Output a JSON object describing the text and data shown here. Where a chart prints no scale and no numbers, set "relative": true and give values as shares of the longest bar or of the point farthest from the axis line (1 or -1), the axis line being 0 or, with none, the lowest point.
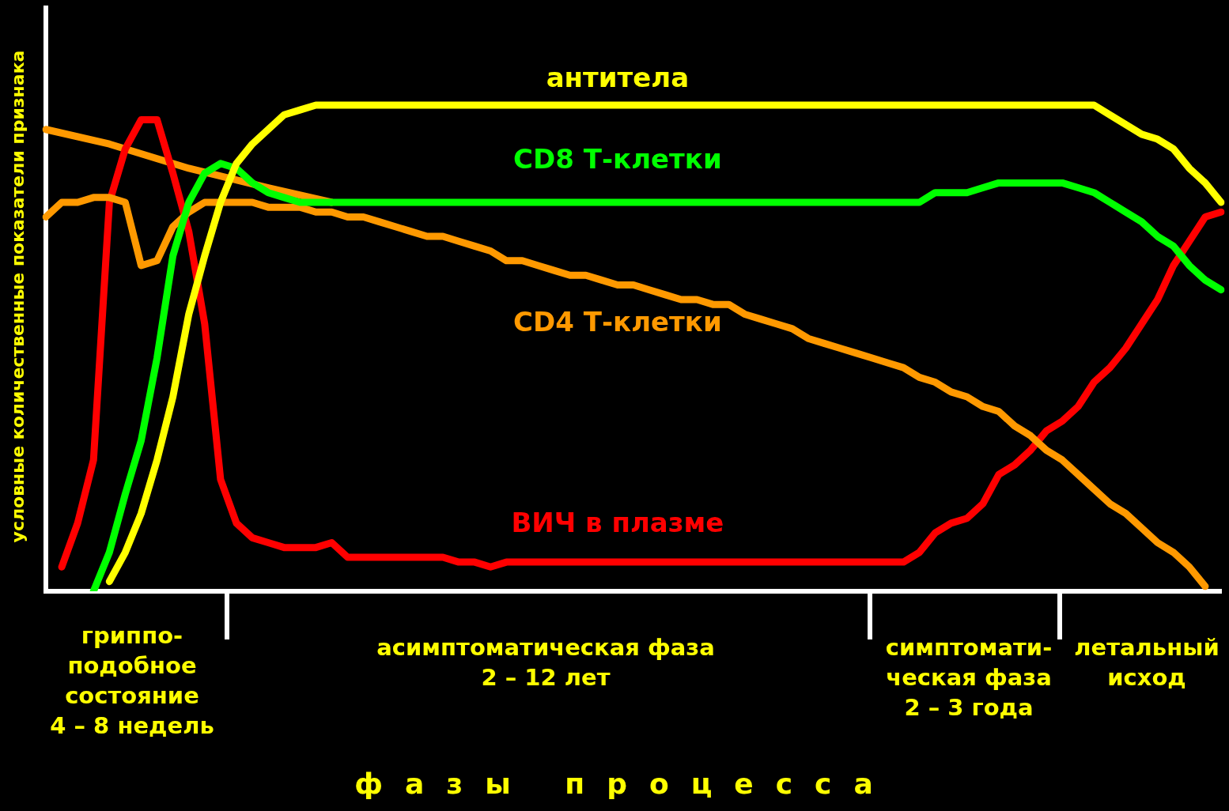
{
  "chart_data": {
    "type": "line",
    "relative": true,
    "ylabel": "условные количественные показатели признака",
    "marker": "none",
    "line_style": "solid",
    "categories": [
      null,
      null,
      null,
      null,
      null,
      null,
      null,
      null,
      null,
      null,
      null,
      null,
      null,
      null,
      null,
      null,
      null,
      null,
      null,
      null,
      null,
      null,
      null,
      null,
      null,
      null,
      null,
      null,
      null,
      null,
      null,
      null,
      null,
      null,
      null,
      null,
      null,
      null,
      null,
      null,
      null,
      null,
      null,
      null,
      null,
      null,
      null,
      null,
      null,
      null,
      null,
      null,
      null,
      null,
      null,
      null,
      null,
      null,
      null,
      null,
      null,
      null,
      null,
      null,
      null,
      null,
      null,
      null,
      null,
      null,
      null,
      null,
      null,
      null,
      null
    ],
    "series": [
      {
        "name": "антитела",
        "color": "#ffff00",
        "values": [
          null,
          null,
          null,
          null,
          0.02,
          0.08,
          0.16,
          0.27,
          0.4,
          0.57,
          0.69,
          0.8,
          0.88,
          0.92,
          0.95,
          0.98,
          0.99,
          1.0,
          1.0,
          1.0,
          1.0,
          1.0,
          1.0,
          1.0,
          1.0,
          1.0,
          1.0,
          1.0,
          1.0,
          1.0,
          1.0,
          1.0,
          1.0,
          1.0,
          1.0,
          1.0,
          1.0,
          1.0,
          1.0,
          1.0,
          1.0,
          1.0,
          1.0,
          1.0,
          1.0,
          1.0,
          1.0,
          1.0,
          1.0,
          1.0,
          1.0,
          1.0,
          1.0,
          1.0,
          1.0,
          1.0,
          1.0,
          1.0,
          1.0,
          1.0,
          1.0,
          1.0,
          1.0,
          1.0,
          1.0,
          1.0,
          1.0,
          0.98,
          0.96,
          0.94,
          0.93,
          0.91,
          0.87,
          0.84,
          0.8
        ]
      },
      {
        "name": "CD8 Т-клетки",
        "color": "#00ff00",
        "values": [
          null,
          null,
          null,
          0.0,
          0.08,
          0.2,
          0.31,
          0.48,
          0.69,
          0.8,
          0.86,
          0.88,
          0.87,
          0.84,
          0.82,
          0.81,
          0.8,
          0.8,
          0.8,
          0.8,
          0.8,
          0.8,
          0.8,
          0.8,
          0.8,
          0.8,
          0.8,
          0.8,
          0.8,
          0.8,
          0.8,
          0.8,
          0.8,
          0.8,
          0.8,
          0.8,
          0.8,
          0.8,
          0.8,
          0.8,
          0.8,
          0.8,
          0.8,
          0.8,
          0.8,
          0.8,
          0.8,
          0.8,
          0.8,
          0.8,
          0.8,
          0.8,
          0.8,
          0.8,
          0.8,
          0.8,
          0.82,
          0.82,
          0.82,
          0.83,
          0.84,
          0.84,
          0.84,
          0.84,
          0.84,
          0.83,
          0.82,
          0.8,
          0.78,
          0.76,
          0.73,
          0.71,
          0.67,
          0.64,
          0.62
        ]
      },
      {
        "name": "CD4 Т-клетки",
        "color": "#ff9900",
        "values": [
          0.77,
          0.8,
          0.8,
          0.81,
          0.81,
          0.8,
          0.67,
          0.68,
          0.75,
          0.78,
          0.8,
          0.8,
          0.8,
          0.8,
          0.79,
          0.79,
          0.79,
          0.78,
          0.78,
          0.77,
          0.77,
          0.76,
          0.75,
          0.74,
          0.73,
          0.73,
          0.72,
          0.71,
          0.7,
          0.68,
          0.68,
          0.67,
          0.66,
          0.65,
          0.65,
          0.64,
          0.63,
          0.63,
          0.62,
          0.61,
          0.6,
          0.6,
          0.59,
          0.59,
          0.57,
          0.56,
          0.55,
          0.54,
          0.52,
          0.51,
          0.5,
          0.49,
          0.48,
          0.47,
          0.46,
          0.44,
          0.43,
          0.41,
          0.4,
          0.38,
          0.37,
          0.34,
          0.32,
          0.29,
          0.27,
          0.24,
          0.21,
          0.18,
          0.16,
          0.13,
          0.1,
          0.08,
          0.05,
          0.01,
          null
        ]
      },
      {
        "name": "ВИЧ в плазме",
        "color": "#ff0000",
        "values": [
          null,
          0.05,
          0.14,
          0.27,
          0.8,
          0.91,
          0.97,
          0.97,
          0.86,
          0.74,
          0.55,
          0.23,
          0.14,
          0.11,
          0.1,
          0.09,
          0.09,
          0.09,
          0.1,
          0.07,
          0.07,
          0.07,
          0.07,
          0.07,
          0.07,
          0.07,
          0.06,
          0.06,
          0.05,
          0.06,
          0.06,
          0.06,
          0.06,
          0.06,
          0.06,
          0.06,
          0.06,
          0.06,
          0.06,
          0.06,
          0.06,
          0.06,
          0.06,
          0.06,
          0.06,
          0.06,
          0.06,
          0.06,
          0.06,
          0.06,
          0.06,
          0.06,
          0.06,
          0.06,
          0.06,
          0.08,
          0.12,
          0.14,
          0.15,
          0.18,
          0.24,
          0.26,
          0.29,
          0.33,
          0.35,
          0.38,
          0.43,
          0.46,
          0.5,
          0.55,
          0.6,
          0.67,
          0.72,
          0.77,
          0.78
        ]
      },
      {
        "color": "#ff9900",
        "values": [
          0.95,
          null,
          null,
          null,
          0.92,
          null,
          null,
          null,
          null,
          0.87,
          null,
          null,
          null,
          null,
          0.83,
          null,
          null,
          null,
          0.8,
          null,
          null,
          null,
          null,
          null,
          null,
          null,
          null,
          null,
          null,
          null,
          null,
          null,
          null,
          null,
          null,
          null,
          null,
          null,
          null,
          null,
          null,
          null,
          null,
          null,
          null,
          null,
          null,
          null,
          null,
          null,
          null,
          null,
          null,
          null,
          null,
          null,
          null,
          null,
          null,
          null,
          null,
          null,
          null,
          null,
          null,
          null,
          null,
          null,
          null,
          null,
          null,
          null,
          null,
          null,
          null
        ]
      }
    ],
    "annotations": [
      "гриппо-\nподобное\nсостояние\n4 – 8 недель",
      "асимптоматическая фаза\n2 – 12 лет",
      "симптомати-\nческая фаза\n2 – 3 года",
      "летальный\nисход",
      "фазы процесса"
    ]
  }
}
